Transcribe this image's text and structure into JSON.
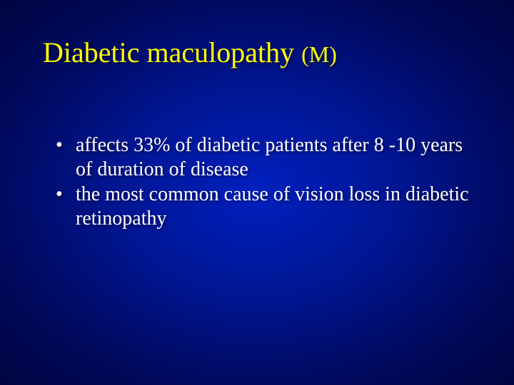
{
  "slide": {
    "title_main": "Diabetic maculopathy ",
    "title_suffix": "(M)",
    "bullets": [
      "affects 33% of diabetic patients after 8 -10 years of duration of disease",
      "the most common cause of vision loss in diabetic retinopathy"
    ]
  },
  "style": {
    "background_gradient_center": "#0020c0",
    "background_gradient_mid": "#001590",
    "background_gradient_outer": "#000440",
    "title_color": "#ffff00",
    "body_color": "#ffffff",
    "title_fontsize_pt": 40,
    "title_suffix_fontsize_pt": 32,
    "body_fontsize_pt": 28,
    "font_family": "Times New Roman",
    "bullet_char": "•"
  }
}
